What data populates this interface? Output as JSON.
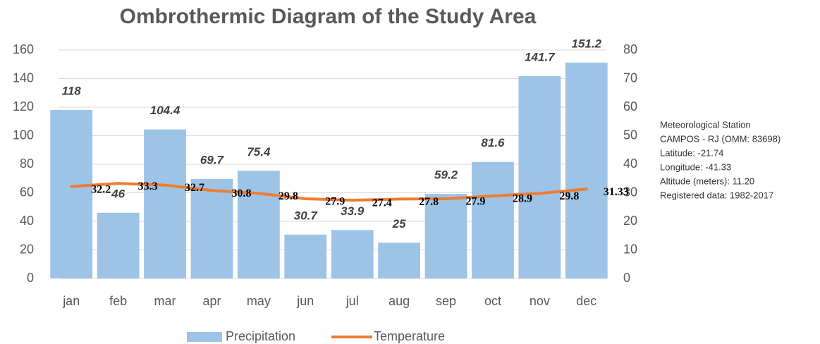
{
  "chart_data": {
    "type": "bar_line",
    "title": "Ombrothermic Diagram of the Study Area",
    "categories": [
      "jan",
      "feb",
      "mar",
      "apr",
      "may",
      "jun",
      "jul",
      "aug",
      "sep",
      "oct",
      "nov",
      "dec"
    ],
    "series": [
      {
        "name": "Precipitation",
        "type": "bar",
        "color": "#9dc3e6",
        "axis": "y",
        "values": [
          118,
          46,
          104.4,
          69.7,
          75.4,
          30.7,
          33.9,
          25,
          59.2,
          81.6,
          141.7,
          151.2
        ]
      },
      {
        "name": "Temperature",
        "type": "line",
        "color": "#ed7d31",
        "axis": "y2",
        "values": [
          32.2,
          33.3,
          32.7,
          30.8,
          29.8,
          27.9,
          27.4,
          27.8,
          27.9,
          28.9,
          29.8,
          31.33
        ]
      }
    ],
    "ylim": [
      0,
      160
    ],
    "yticks": [
      0,
      20,
      40,
      60,
      80,
      100,
      120,
      140,
      160
    ],
    "y2lim": [
      0,
      80
    ],
    "y2ticks": [
      0,
      10,
      20,
      30,
      40,
      50,
      60,
      70,
      80
    ],
    "grid": true,
    "legend": "bottom",
    "annotation": [
      "Meteorological Station",
      "CAMPOS - RJ (OMM: 83698)",
      "Latitude: -21.74",
      "Longitude: -41.33",
      "Altitude (meters): 11.20",
      "Registered data: 1982-2017"
    ]
  }
}
